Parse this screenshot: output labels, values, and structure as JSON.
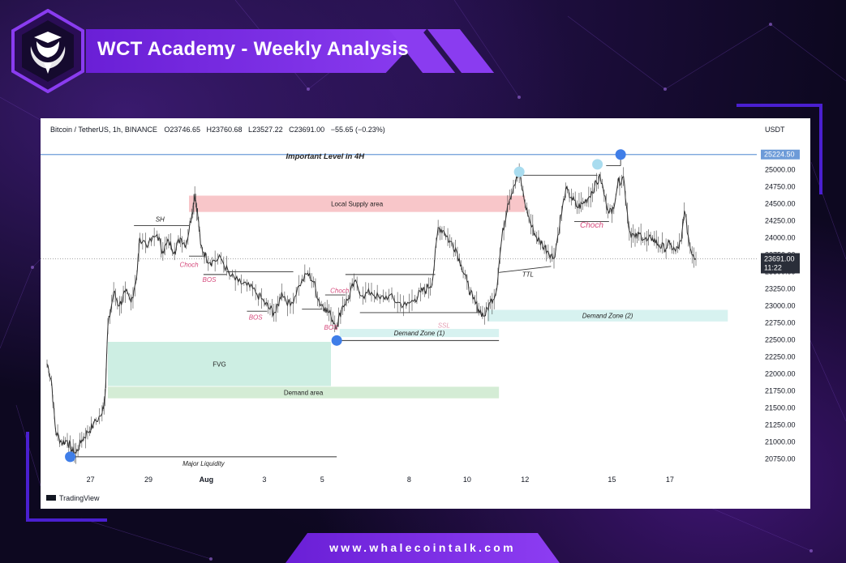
{
  "header": {
    "title": "WCT Academy - Weekly Analysis"
  },
  "footer": {
    "url": "www.whalecointalk.com"
  },
  "colors": {
    "accent": "#7b2ff0",
    "supply": "#f8c6c9",
    "fvg": "#cdeee3",
    "demand": "#d4ecd5",
    "demand_zone": "#d7f2f0",
    "marker_blue": "#3f7ee8",
    "marker_light": "#a9dcef",
    "level_line": "#6d9bd8"
  },
  "chart_data": {
    "type": "line",
    "title": "Bitcoin / TetherUS, 1h, BINANCE",
    "ohlc_readout": {
      "open_label": "O",
      "open": "23746.65",
      "high_label": "H",
      "high": "23760.68",
      "low_label": "L",
      "low": "23527.22",
      "close_label": "C",
      "close": "23691.00",
      "change": "−55.65 (−0.23%)"
    },
    "currency": "USDT",
    "watermark": "TradingView",
    "ylim": [
      20600,
      25400
    ],
    "y_ticks": [
      20750,
      21000,
      21250,
      21500,
      21750,
      22000,
      22250,
      22500,
      22750,
      23000,
      23250,
      23500,
      23750,
      24000,
      24250,
      24500,
      24750,
      25000
    ],
    "y_tick_labels": [
      "20750.00",
      "21000.00",
      "21250.00",
      "21500.00",
      "21750.00",
      "22000.00",
      "22250.00",
      "22500.00",
      "22750.00",
      "23000.00",
      "23250.00",
      "23500.00",
      "23750.00",
      "24000.00",
      "24250.00",
      "24500.00",
      "24750.00",
      "25000.00"
    ],
    "x_ticks": [
      {
        "t": 1.5,
        "label": "27"
      },
      {
        "t": 3.5,
        "label": "29"
      },
      {
        "t": 5.5,
        "label": "Aug"
      },
      {
        "t": 7.5,
        "label": "3"
      },
      {
        "t": 9.5,
        "label": "5"
      },
      {
        "t": 12.5,
        "label": "8"
      },
      {
        "t": 14.5,
        "label": "10"
      },
      {
        "t": 16.5,
        "label": "12"
      },
      {
        "t": 19.5,
        "label": "15"
      },
      {
        "t": 21.5,
        "label": "17"
      }
    ],
    "xlim": [
      0,
      24.5
    ],
    "price_path": [
      [
        0.0,
        22150
      ],
      [
        0.15,
        21900
      ],
      [
        0.3,
        21150
      ],
      [
        0.5,
        20990
      ],
      [
        0.7,
        21020
      ],
      [
        0.85,
        20880
      ],
      [
        1.0,
        20830
      ],
      [
        1.2,
        21030
      ],
      [
        1.4,
        21140
      ],
      [
        1.6,
        21250
      ],
      [
        1.9,
        21420
      ],
      [
        2.0,
        21650
      ],
      [
        2.1,
        22700
      ],
      [
        2.3,
        23200
      ],
      [
        2.5,
        23000
      ],
      [
        2.7,
        23200
      ],
      [
        2.9,
        23050
      ],
      [
        3.1,
        23450
      ],
      [
        3.2,
        24000
      ],
      [
        3.5,
        23900
      ],
      [
        3.8,
        24050
      ],
      [
        4.0,
        23800
      ],
      [
        4.2,
        23950
      ],
      [
        4.4,
        23800
      ],
      [
        4.6,
        24000
      ],
      [
        4.8,
        23900
      ],
      [
        5.0,
        24350
      ],
      [
        5.1,
        24650
      ],
      [
        5.2,
        24350
      ],
      [
        5.3,
        23900
      ],
      [
        5.5,
        23700
      ],
      [
        5.7,
        23650
      ],
      [
        6.0,
        23700
      ],
      [
        6.3,
        23450
      ],
      [
        6.6,
        23350
      ],
      [
        6.9,
        23300
      ],
      [
        7.2,
        23200
      ],
      [
        7.5,
        23050
      ],
      [
        7.7,
        22950
      ],
      [
        7.9,
        22900
      ],
      [
        8.1,
        23200
      ],
      [
        8.4,
        23000
      ],
      [
        8.7,
        23300
      ],
      [
        9.0,
        23480
      ],
      [
        9.2,
        23350
      ],
      [
        9.4,
        23050
      ],
      [
        9.6,
        22980
      ],
      [
        9.8,
        22850
      ],
      [
        10.0,
        22700
      ],
      [
        10.2,
        23000
      ],
      [
        10.4,
        23100
      ],
      [
        10.6,
        23350
      ],
      [
        10.9,
        23150
      ],
      [
        11.2,
        23200
      ],
      [
        11.5,
        23100
      ],
      [
        11.8,
        23150
      ],
      [
        12.1,
        23050
      ],
      [
        12.4,
        23000
      ],
      [
        12.7,
        23100
      ],
      [
        12.9,
        23200
      ],
      [
        13.1,
        23250
      ],
      [
        13.3,
        23350
      ],
      [
        13.5,
        24150
      ],
      [
        13.7,
        24100
      ],
      [
        13.9,
        23950
      ],
      [
        14.1,
        23850
      ],
      [
        14.3,
        23600
      ],
      [
        14.5,
        23350
      ],
      [
        14.7,
        23100
      ],
      [
        14.9,
        22950
      ],
      [
        15.1,
        22850
      ],
      [
        15.3,
        23050
      ],
      [
        15.5,
        23200
      ],
      [
        15.7,
        24000
      ],
      [
        15.9,
        24500
      ],
      [
        16.1,
        24750
      ],
      [
        16.3,
        24950
      ],
      [
        16.5,
        24500
      ],
      [
        16.7,
        24200
      ],
      [
        16.9,
        24000
      ],
      [
        17.1,
        23900
      ],
      [
        17.3,
        23800
      ],
      [
        17.5,
        23700
      ],
      [
        17.7,
        24200
      ],
      [
        17.9,
        24700
      ],
      [
        18.1,
        24600
      ],
      [
        18.3,
        24450
      ],
      [
        18.5,
        24500
      ],
      [
        18.7,
        24600
      ],
      [
        18.9,
        24750
      ],
      [
        19.1,
        24900
      ],
      [
        19.3,
        24500
      ],
      [
        19.5,
        24350
      ],
      [
        19.7,
        24800
      ],
      [
        19.9,
        24900
      ],
      [
        20.1,
        24100
      ],
      [
        20.3,
        24000
      ],
      [
        20.5,
        24050
      ],
      [
        20.7,
        23950
      ],
      [
        20.9,
        24000
      ],
      [
        21.1,
        23900
      ],
      [
        21.3,
        23850
      ],
      [
        21.5,
        23900
      ],
      [
        21.7,
        23800
      ],
      [
        21.9,
        23950
      ],
      [
        22.0,
        24400
      ],
      [
        22.2,
        23850
      ],
      [
        22.4,
        23691
      ]
    ],
    "current_price_label": "23691.00",
    "countdown_label": "11:22",
    "level_price_label": "25224.50",
    "zones": [
      {
        "label": "Local Supply area",
        "t0": 4.9,
        "t1": 16.5,
        "y0": 24380,
        "y1": 24620,
        "kind": "supply"
      },
      {
        "label": "FVG",
        "t0": 2.1,
        "t1": 9.8,
        "y0": 21820,
        "y1": 22470,
        "kind": "fvg"
      },
      {
        "label": "Demand area",
        "t0": 2.1,
        "t1": 15.6,
        "y0": 21640,
        "y1": 21810,
        "kind": "demand"
      },
      {
        "label": "Demand Zone (1)",
        "t0": 10.1,
        "t1": 15.6,
        "y0": 22540,
        "y1": 22660,
        "kind": "demand_zone"
      },
      {
        "label": "Demand Zone (2)",
        "t0": 15.2,
        "t1": 23.5,
        "y0": 22770,
        "y1": 22940,
        "kind": "demand_zone"
      }
    ],
    "annotations": [
      {
        "text": "Important Level in 4H",
        "t": 9.6,
        "y": 25160,
        "style": "bold-italic"
      },
      {
        "text": "SH",
        "t": 3.9,
        "y": 24240,
        "style": "italic"
      },
      {
        "text": "Choch",
        "t": 4.9,
        "y": 23570,
        "style": "italic-pink"
      },
      {
        "text": "BOS",
        "t": 5.6,
        "y": 23350,
        "style": "italic-pink"
      },
      {
        "text": "BOS",
        "t": 7.2,
        "y": 22800,
        "style": "italic-pink"
      },
      {
        "text": "Choch",
        "t": 10.1,
        "y": 23190,
        "style": "italic-pink"
      },
      {
        "text": "BOS",
        "t": 9.8,
        "y": 22650,
        "style": "italic-pink"
      },
      {
        "text": "SSL",
        "t": 13.7,
        "y": 22680,
        "style": "italic-faint"
      },
      {
        "text": "TTL",
        "t": 16.6,
        "y": 23430,
        "style": "italic"
      },
      {
        "text": "Choch",
        "t": 18.8,
        "y": 24150,
        "style": "italic-pink"
      },
      {
        "text": "Major Liquidity",
        "t": 5.4,
        "y": 20650,
        "style": "italic"
      }
    ]
  }
}
